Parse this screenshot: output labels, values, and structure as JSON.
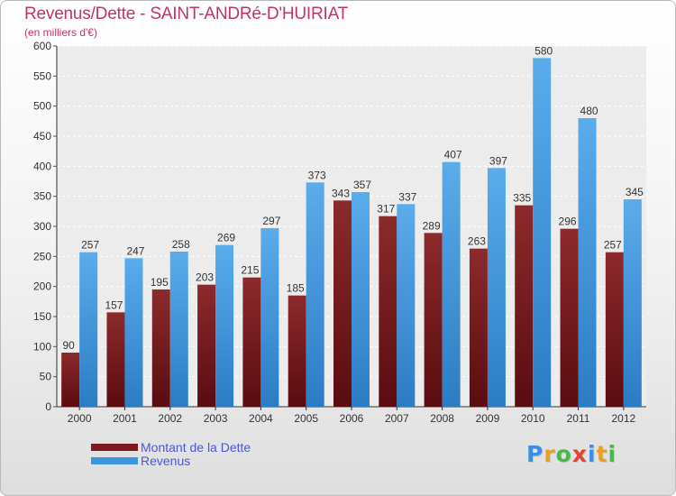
{
  "title": "Revenus/Dette - SAINT-ANDRé-D'HUIRIAT",
  "subtitle": "(en milliers d'€)",
  "chart_data": {
    "type": "bar",
    "categories": [
      "2000",
      "2001",
      "2002",
      "2003",
      "2004",
      "2005",
      "2006",
      "2007",
      "2008",
      "2009",
      "2010",
      "2011",
      "2012"
    ],
    "series": [
      {
        "name": "Montant de la Dette",
        "color": "#7b1a1e",
        "values": [
          90,
          157,
          195,
          203,
          215,
          185,
          343,
          317,
          289,
          263,
          335,
          296,
          257
        ]
      },
      {
        "name": "Revenus",
        "color": "#3f95db",
        "values": [
          257,
          247,
          258,
          269,
          297,
          373,
          357,
          337,
          407,
          397,
          580,
          480,
          345
        ]
      }
    ],
    "yticks": [
      0,
      50,
      100,
      150,
      200,
      250,
      300,
      350,
      400,
      450,
      500,
      550,
      600
    ],
    "ylim": [
      0,
      600
    ],
    "grid": true,
    "legend_position": "bottom-left"
  },
  "legend": {
    "items": [
      {
        "label": "Montant de la Dette",
        "color": "#7b1a1e"
      },
      {
        "label": "Revenus",
        "color": "#3f95db"
      }
    ]
  },
  "logo": {
    "letters": [
      {
        "char": "P",
        "color": "#3a8ee6"
      },
      {
        "char": "r",
        "color": "#e8a020"
      },
      {
        "char": "o",
        "color": "#49b84a"
      },
      {
        "char": "x",
        "color": "#e2452d"
      },
      {
        "char": "i",
        "color": "#3a8ee6"
      },
      {
        "char": "t",
        "color": "#e8a020"
      },
      {
        "char": "i",
        "color": "#49b84a"
      }
    ]
  }
}
